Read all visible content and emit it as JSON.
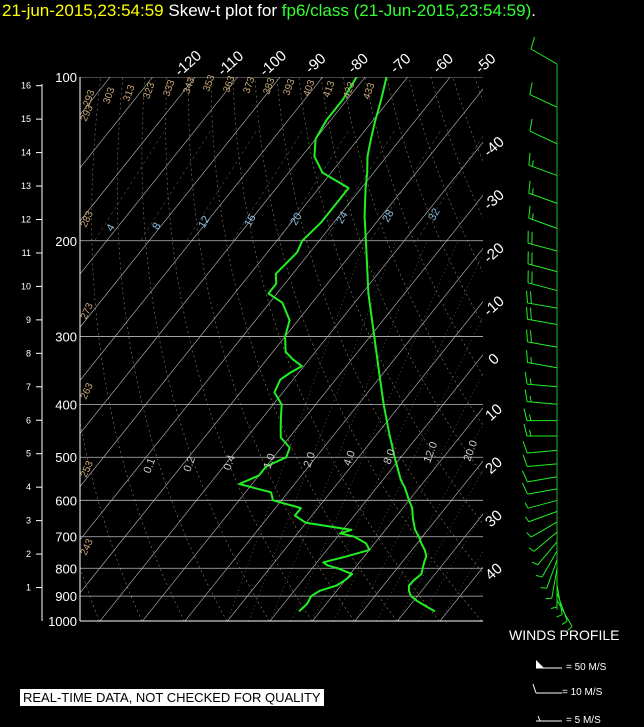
{
  "header": {
    "datetime": "21-jun-2015,23:54:59",
    "title_prefix": "Skew-t plot for",
    "station": "fp6/class (21-Jun-2015,23:54:59)",
    "suffix": "."
  },
  "disclaimer": "REAL-TIME DATA, NOT CHECKED FOR QUALITY",
  "winds_profile": {
    "title": "WINDS PROFILE",
    "legend": [
      {
        "label": "= 50 M/S"
      },
      {
        "label": "= 10 M/S"
      },
      {
        "label": "= 5 M/S"
      }
    ]
  },
  "colors": {
    "background": "#000000",
    "sounding": "#22ee22",
    "isobar": "#bbbbbb",
    "isotherm": "#ffffff",
    "dry_adiabat": "#c8a878",
    "moist_adiabat": "#cccccc",
    "mixing_ratio": "#88bbdd",
    "header_date": "#ffff00",
    "header_station": "#33ff33"
  },
  "chart_data": {
    "type": "line",
    "title": "Skew-t plot",
    "pressure_axis": {
      "label_values": [
        100,
        200,
        300,
        400,
        500,
        600,
        700,
        800,
        900,
        1000
      ],
      "range": [
        100,
        1000
      ],
      "scale": "log"
    },
    "height_axis_km": {
      "ticks": [
        1,
        2,
        3,
        4,
        5,
        6,
        7,
        8,
        9,
        10,
        11,
        12,
        13,
        14,
        15,
        16
      ]
    },
    "isotherm_labels_c": [
      -120,
      -110,
      -100,
      -90,
      -80,
      -70,
      -60,
      -50,
      -40,
      -30,
      -20,
      -10,
      0,
      10,
      20,
      30,
      40
    ],
    "dry_adiabat_labels_k": [
      293,
      303,
      313,
      323,
      333,
      343,
      353,
      363,
      373,
      383,
      393,
      403,
      413,
      423,
      433
    ],
    "dry_adiabat_left_labels_k": [
      293,
      283,
      273,
      263,
      253,
      243
    ],
    "mixing_ratio_labels_gkg": [
      4,
      8,
      12,
      16,
      20,
      24,
      28,
      32
    ],
    "moist_adiabat_labels": [
      "0.1",
      "0.2",
      "0.4",
      "1.0",
      "2.0",
      "4.0",
      "8.0",
      "12.0",
      "20.0"
    ],
    "series": [
      {
        "name": "Temperature",
        "points": [
          [
            960,
            37.0
          ],
          [
            940,
            34.0
          ],
          [
            920,
            31.0
          ],
          [
            900,
            28.5
          ],
          [
            880,
            27.0
          ],
          [
            860,
            26.0
          ],
          [
            840,
            26.2
          ],
          [
            820,
            26.8
          ],
          [
            800,
            26.0
          ],
          [
            780,
            25.2
          ],
          [
            760,
            24.6
          ],
          [
            740,
            23.0
          ],
          [
            720,
            21.0
          ],
          [
            700,
            19.2
          ],
          [
            680,
            17.0
          ],
          [
            650,
            14.5
          ],
          [
            620,
            12.2
          ],
          [
            600,
            10.0
          ],
          [
            570,
            6.8
          ],
          [
            550,
            4.2
          ],
          [
            500,
            -1.5
          ],
          [
            450,
            -7.5
          ],
          [
            400,
            -14.0
          ],
          [
            350,
            -21.0
          ],
          [
            300,
            -29.0
          ],
          [
            250,
            -38.5
          ],
          [
            200,
            -49.0
          ],
          [
            180,
            -54.0
          ],
          [
            160,
            -59.0
          ],
          [
            150,
            -61.5
          ],
          [
            140,
            -64.5
          ],
          [
            130,
            -67.0
          ],
          [
            120,
            -69.5
          ],
          [
            110,
            -72.0
          ],
          [
            100,
            -75.0
          ]
        ]
      },
      {
        "name": "Dew point",
        "points": [
          [
            960,
            5.0
          ],
          [
            930,
            5.5
          ],
          [
            900,
            5.0
          ],
          [
            880,
            6.0
          ],
          [
            860,
            9.0
          ],
          [
            840,
            10.0
          ],
          [
            820,
            10.5
          ],
          [
            800,
            6.0
          ],
          [
            790,
            3.0
          ],
          [
            780,
            1.5
          ],
          [
            760,
            6.0
          ],
          [
            740,
            10.0
          ],
          [
            720,
            8.0
          ],
          [
            700,
            4.0
          ],
          [
            690,
            0.0
          ],
          [
            680,
            2.0
          ],
          [
            660,
            -10.0
          ],
          [
            640,
            -14.0
          ],
          [
            620,
            -14.0
          ],
          [
            600,
            -22.0
          ],
          [
            580,
            -24.0
          ],
          [
            560,
            -33.0
          ],
          [
            540,
            -30.0
          ],
          [
            520,
            -30.0
          ],
          [
            500,
            -27.0
          ],
          [
            480,
            -28.0
          ],
          [
            460,
            -32.0
          ],
          [
            440,
            -34.0
          ],
          [
            420,
            -36.0
          ],
          [
            400,
            -38.0
          ],
          [
            380,
            -42.0
          ],
          [
            360,
            -43.0
          ],
          [
            350,
            -42.0
          ],
          [
            340,
            -40.5
          ],
          [
            330,
            -44.0
          ],
          [
            320,
            -47.0
          ],
          [
            300,
            -50.0
          ],
          [
            280,
            -52.0
          ],
          [
            260,
            -57.0
          ],
          [
            250,
            -62.0
          ],
          [
            240,
            -62.0
          ],
          [
            230,
            -64.0
          ],
          [
            210,
            -63.0
          ],
          [
            200,
            -64.0
          ],
          [
            185,
            -63.0
          ],
          [
            170,
            -63.0
          ],
          [
            160,
            -63.0
          ],
          [
            150,
            -72.0
          ],
          [
            140,
            -77.0
          ],
          [
            130,
            -80.0
          ],
          [
            120,
            -81.0
          ],
          [
            110,
            -81.0
          ],
          [
            100,
            -82.0
          ]
        ]
      }
    ],
    "wind_barbs": {
      "units": "M/S",
      "levels": [
        {
          "p": 960,
          "dir": 150,
          "spd": 6
        },
        {
          "p": 930,
          "dir": 160,
          "spd": 8
        },
        {
          "p": 900,
          "dir": 170,
          "spd": 8
        },
        {
          "p": 870,
          "dir": 180,
          "spd": 9
        },
        {
          "p": 840,
          "dir": 190,
          "spd": 8
        },
        {
          "p": 810,
          "dir": 200,
          "spd": 7
        },
        {
          "p": 780,
          "dir": 210,
          "spd": 7
        },
        {
          "p": 750,
          "dir": 220,
          "spd": 6
        },
        {
          "p": 720,
          "dir": 230,
          "spd": 6
        },
        {
          "p": 690,
          "dir": 240,
          "spd": 7
        },
        {
          "p": 660,
          "dir": 250,
          "spd": 8
        },
        {
          "p": 630,
          "dir": 255,
          "spd": 9
        },
        {
          "p": 600,
          "dir": 260,
          "spd": 10
        },
        {
          "p": 570,
          "dir": 260,
          "spd": 11
        },
        {
          "p": 540,
          "dir": 265,
          "spd": 12
        },
        {
          "p": 510,
          "dir": 265,
          "spd": 13
        },
        {
          "p": 480,
          "dir": 270,
          "spd": 15
        },
        {
          "p": 450,
          "dir": 270,
          "spd": 16
        },
        {
          "p": 420,
          "dir": 275,
          "spd": 17
        },
        {
          "p": 390,
          "dir": 275,
          "spd": 18
        },
        {
          "p": 360,
          "dir": 280,
          "spd": 19
        },
        {
          "p": 330,
          "dir": 280,
          "spd": 20
        },
        {
          "p": 300,
          "dir": 280,
          "spd": 21
        },
        {
          "p": 280,
          "dir": 280,
          "spd": 22
        },
        {
          "p": 260,
          "dir": 285,
          "spd": 22
        },
        {
          "p": 240,
          "dir": 285,
          "spd": 21
        },
        {
          "p": 220,
          "dir": 285,
          "spd": 20
        },
        {
          "p": 200,
          "dir": 290,
          "spd": 18
        },
        {
          "p": 180,
          "dir": 290,
          "spd": 16
        },
        {
          "p": 160,
          "dir": 290,
          "spd": 15
        },
        {
          "p": 140,
          "dir": 295,
          "spd": 14
        },
        {
          "p": 120,
          "dir": 295,
          "spd": 12
        },
        {
          "p": 100,
          "dir": 300,
          "spd": 10
        }
      ]
    }
  }
}
